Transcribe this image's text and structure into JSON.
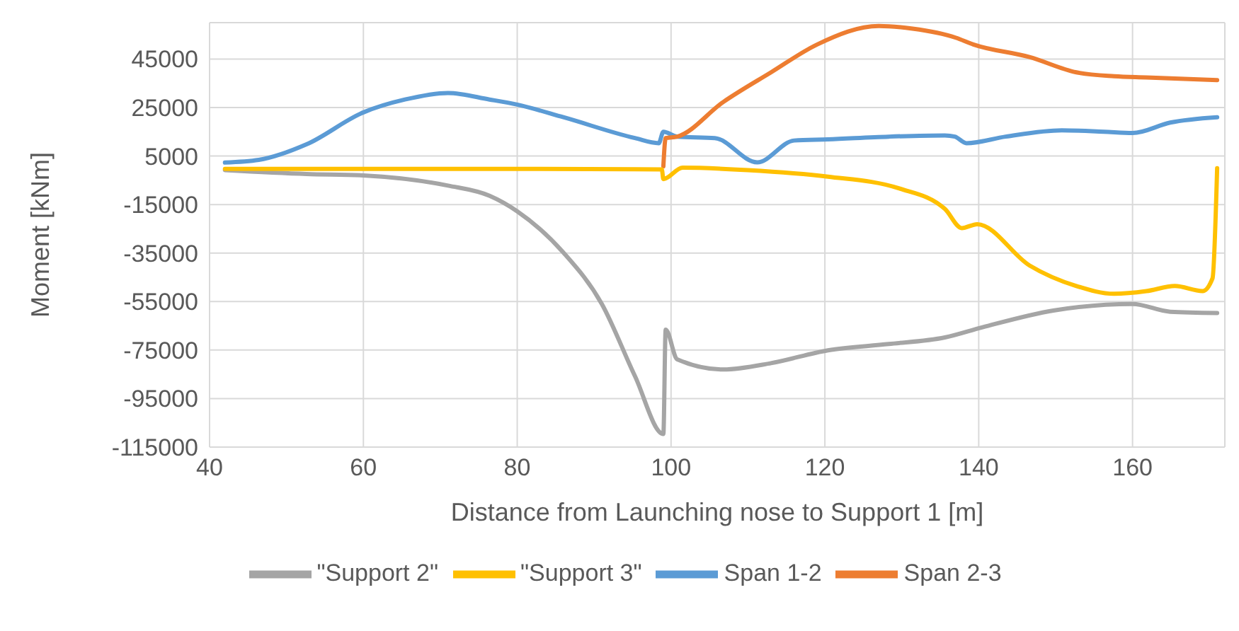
{
  "chart_data": {
    "type": "line",
    "xlabel": "Distance from Launching nose to Support 1 [m]",
    "ylabel": "Moment [kNm]",
    "xlim": [
      40,
      172
    ],
    "xticks": [
      40,
      60,
      80,
      100,
      120,
      140,
      160
    ],
    "ylim": [
      -115000,
      60000
    ],
    "yticks": [
      -115000,
      -95000,
      -75000,
      -55000,
      -35000,
      -15000,
      5000,
      25000,
      45000
    ],
    "grid": true,
    "legend": "bottom",
    "marker": "none",
    "line_style": "solid",
    "series": [
      {
        "name": "Span 1-2",
        "color": "#5b9bd5",
        "x": [
          42,
          46.4,
          52.6,
          60,
          65.4,
          71,
          76.4,
          80,
          86,
          95.3,
          98.4,
          99,
          100.8,
          105.7,
          111.2,
          116,
          120.4,
          128.3,
          135.6,
          136.9,
          138.4,
          143.5,
          150.8,
          156.3,
          160,
          164.9,
          171
        ],
        "values": [
          2300,
          3400,
          9800,
          23000,
          28300,
          31000,
          28300,
          26200,
          21000,
          12400,
          10300,
          15000,
          13000,
          12400,
          2400,
          11400,
          11900,
          13000,
          13500,
          13000,
          10300,
          13000,
          15600,
          15000,
          14500,
          18800,
          21000
        ]
      },
      {
        "name": "Span 2-3",
        "color": "#ed7d31",
        "x": [
          99,
          99.3,
          100.8,
          106.8,
          113,
          119,
          127,
          131.4,
          137,
          139.3,
          146.6,
          152.7,
          157.6,
          161.8,
          171
        ],
        "values": [
          800,
          12400,
          13000,
          27300,
          39500,
          51000,
          58600,
          57500,
          53800,
          51000,
          45800,
          39500,
          37900,
          37400,
          36300
        ]
      },
      {
        "name": "\"Support 2\"",
        "color": "#a5a5a5",
        "x": [
          42,
          52.6,
          60,
          71,
          76.4,
          80,
          86,
          91,
          95.3,
          99,
          99.3,
          100.8,
          106.8,
          113,
          120.4,
          128.3,
          135.6,
          140.5,
          149.7,
          160,
          164.9,
          171
        ],
        "values": [
          -800,
          -2400,
          -3000,
          -7200,
          -11400,
          -17800,
          -34800,
          -56000,
          -85700,
          -109600,
          -66600,
          -78800,
          -83000,
          -80400,
          -75100,
          -72500,
          -69800,
          -65600,
          -58700,
          -56000,
          -59200,
          -59700
        ]
      },
      {
        "name": "\"Support 3\"",
        "color": "#ffc000",
        "x": [
          42,
          60,
          80,
          98.8,
          99,
          101.5,
          110,
          120.4,
          129.6,
          135.6,
          137.8,
          139.8,
          146.6,
          152.7,
          157.6,
          161.8,
          165.5,
          169.1,
          170.4,
          171
        ],
        "values": [
          -300,
          -300,
          -300,
          -500,
          -4500,
          200,
          -800,
          -3500,
          -8300,
          -16800,
          -24700,
          -23100,
          -40100,
          -48600,
          -51800,
          -50700,
          -48600,
          -50700,
          -45400,
          0
        ]
      }
    ]
  }
}
